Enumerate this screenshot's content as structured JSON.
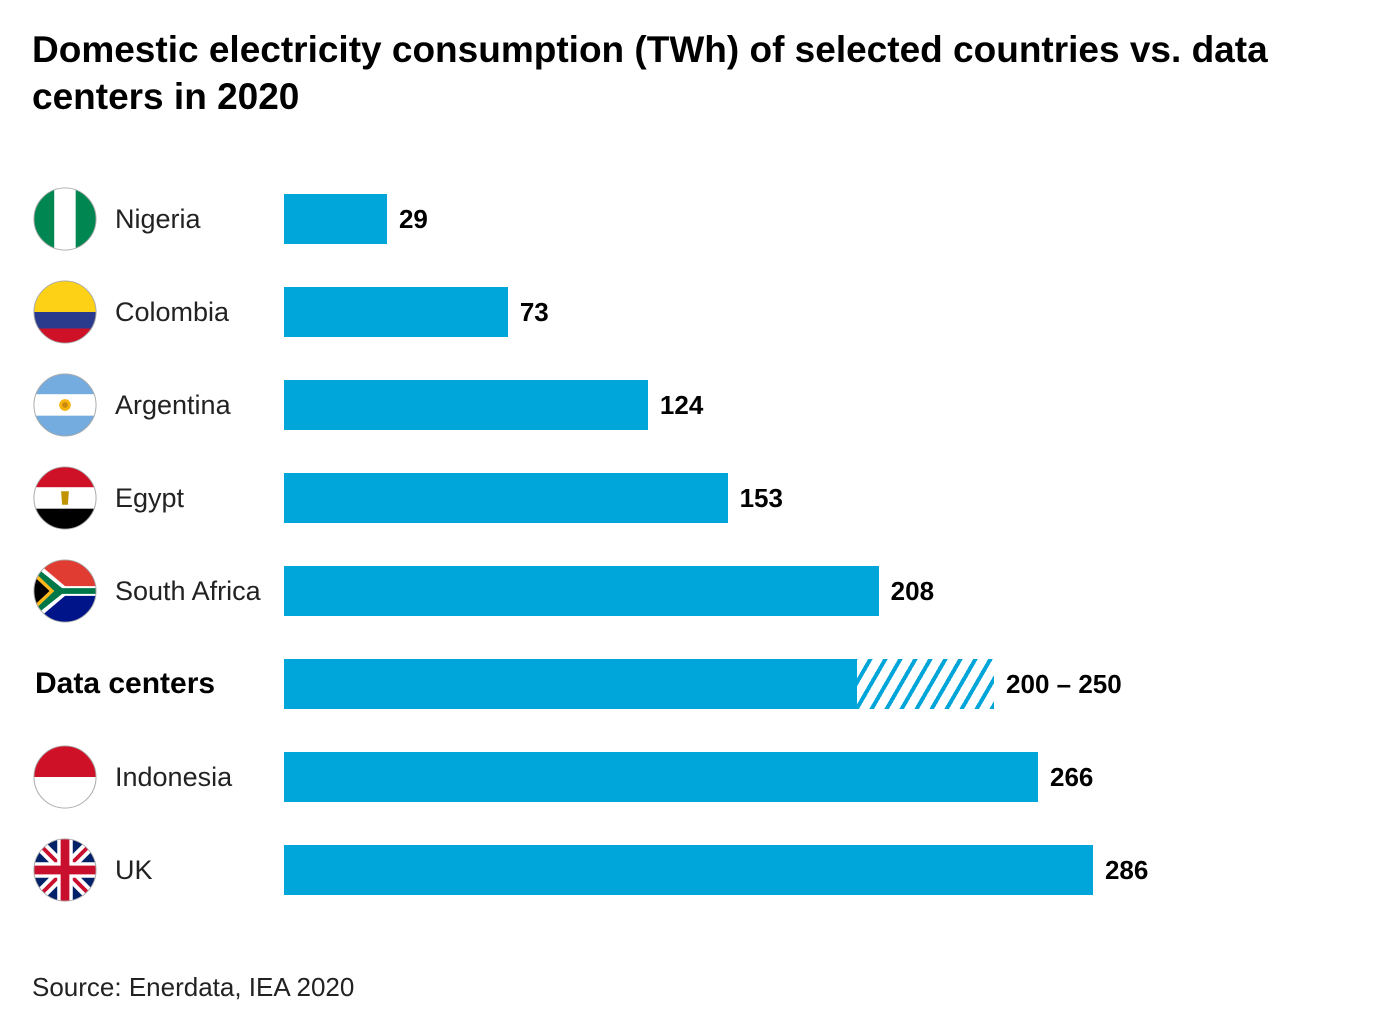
{
  "chart_data": {
    "type": "bar",
    "orientation": "horizontal",
    "title": "Domestic electricity consumption (TWh) of selected countries vs. data centers in 2020",
    "categories": [
      "Nigeria",
      "Colombia",
      "Argentina",
      "Egypt",
      "South Africa",
      "Data centers",
      "Indonesia",
      "UK"
    ],
    "values": [
      29,
      73,
      124,
      153,
      208,
      [
        200,
        250
      ],
      266,
      286
    ],
    "value_labels": [
      "29",
      "73",
      "124",
      "153",
      "208",
      "200 – 250",
      "266",
      "286"
    ],
    "flags": [
      "nigeria-flag",
      "colombia-flag",
      "argentina-flag",
      "egypt-flag",
      "south-africa-flag",
      null,
      "indonesia-flag",
      "uk-flag"
    ],
    "range_style": "solid to lower bound, hatched to upper bound",
    "bar_color": "#00a6da",
    "grid": false,
    "axes_visible": false,
    "source": "Source: Enerdata, IEA 2020"
  }
}
